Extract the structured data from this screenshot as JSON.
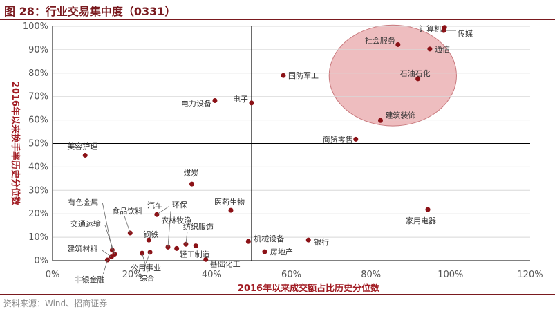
{
  "header": {
    "title": "图 28：行业交易集中度（0331）"
  },
  "footer": {
    "source": "资料来源：Wind、招商证券"
  },
  "colors": {
    "accent": "#a21d24",
    "point": "#8b1116",
    "highlight": "#e8a7aa",
    "grid": "#d8d8d8",
    "axis": "#000000"
  },
  "chart_data": {
    "type": "scatter",
    "title": "行业交易集中度（0331）",
    "xlabel": "2016年以来成交额占比历史分位数",
    "ylabel": "2016年以来换手率历史分位数",
    "xlim": [
      0,
      1.2
    ],
    "ylim": [
      0,
      1.0
    ],
    "x_ticks": [
      {
        "v": 0,
        "label": "0%"
      },
      {
        "v": 0.2,
        "label": "20%"
      },
      {
        "v": 0.4,
        "label": "40%"
      },
      {
        "v": 0.6,
        "label": "60%"
      },
      {
        "v": 0.8,
        "label": "80%"
      },
      {
        "v": 1.0,
        "label": "100%"
      },
      {
        "v": 1.2,
        "label": "120%"
      }
    ],
    "y_ticks": [
      {
        "v": 0,
        "label": "0%"
      },
      {
        "v": 0.1,
        "label": "10%"
      },
      {
        "v": 0.2,
        "label": "20%"
      },
      {
        "v": 0.3,
        "label": "30%"
      },
      {
        "v": 0.4,
        "label": "40%"
      },
      {
        "v": 0.5,
        "label": "50%"
      },
      {
        "v": 0.6,
        "label": "60%"
      },
      {
        "v": 0.7,
        "label": "70%"
      },
      {
        "v": 0.8,
        "label": "80%"
      },
      {
        "v": 0.9,
        "label": "90%"
      },
      {
        "v": 1.0,
        "label": "100%"
      }
    ],
    "grid": "horizontal",
    "reference_lines": {
      "x": 0.5,
      "y": 0.5
    },
    "highlight_region": {
      "cx": 0.855,
      "cy": 0.79,
      "rx": 0.16,
      "ry": 0.215
    },
    "points": [
      {
        "name": "计算机",
        "x": 0.985,
        "y": 0.995
      },
      {
        "name": "传媒",
        "x": 0.983,
        "y": 0.982
      },
      {
        "name": "社会服务",
        "x": 0.868,
        "y": 0.922
      },
      {
        "name": "通信",
        "x": 0.948,
        "y": 0.903
      },
      {
        "name": "国防军工",
        "x": 0.58,
        "y": 0.79
      },
      {
        "name": "石油石化",
        "x": 0.918,
        "y": 0.776
      },
      {
        "name": "电力设备",
        "x": 0.408,
        "y": 0.683
      },
      {
        "name": "电子",
        "x": 0.5,
        "y": 0.673
      },
      {
        "name": "建筑装饰",
        "x": 0.824,
        "y": 0.598
      },
      {
        "name": "商贸零售",
        "x": 0.762,
        "y": 0.518
      },
      {
        "name": "美容护理",
        "x": 0.082,
        "y": 0.45
      },
      {
        "name": "煤炭",
        "x": 0.35,
        "y": 0.327
      },
      {
        "name": "家用电器",
        "x": 0.943,
        "y": 0.218
      },
      {
        "name": "医药生物",
        "x": 0.448,
        "y": 0.215
      },
      {
        "name": "环保",
        "x": 0.262,
        "y": 0.197
      },
      {
        "name": "食品饮料",
        "x": 0.195,
        "y": 0.118
      },
      {
        "name": "钢铁",
        "x": 0.242,
        "y": 0.088
      },
      {
        "name": "银行",
        "x": 0.643,
        "y": 0.088
      },
      {
        "name": "机械设备",
        "x": 0.492,
        "y": 0.082
      },
      {
        "name": "纺织服饰",
        "x": 0.335,
        "y": 0.07
      },
      {
        "name": "汽车",
        "x": 0.29,
        "y": 0.058
      },
      {
        "name": "轻工制造",
        "x": 0.312,
        "y": 0.052
      },
      {
        "name": "农林牧渔",
        "x": 0.36,
        "y": 0.063
      },
      {
        "name": "房地产",
        "x": 0.533,
        "y": 0.038
      },
      {
        "name": "公用事业",
        "x": 0.245,
        "y": 0.036
      },
      {
        "name": "有色金属",
        "x": 0.15,
        "y": 0.045
      },
      {
        "name": "交通运输",
        "x": 0.156,
        "y": 0.028
      },
      {
        "name": "建筑材料",
        "x": 0.148,
        "y": 0.016
      },
      {
        "name": "综合",
        "x": 0.225,
        "y": 0.032
      },
      {
        "name": "非银金融",
        "x": 0.138,
        "y": 0.003
      },
      {
        "name": "基础化工",
        "x": 0.385,
        "y": 0.005
      }
    ]
  }
}
